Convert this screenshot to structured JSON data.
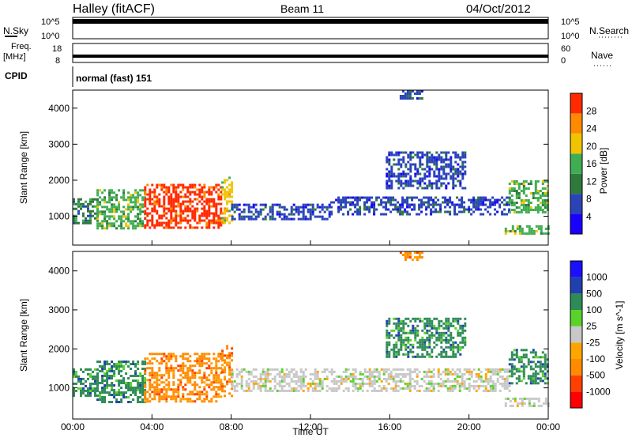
{
  "header": {
    "station": "Halley (fitACF)",
    "beam": "Beam 11",
    "date": "04/Oct/2012"
  },
  "top_panels": {
    "nsky_label": "N.Sky",
    "nsky_ticks": [
      "10^5",
      "10^0"
    ],
    "nsearch_label": "N.Search",
    "nsearch_ticks": [
      "10^5",
      "10^0"
    ],
    "freq_label": "Freq.",
    "freq_unit": "[MHz]",
    "freq_ticks": [
      "18",
      "8"
    ],
    "nave_label": "Nave",
    "nave_ticks": [
      "60",
      "0"
    ],
    "cpid_label": "CPID",
    "cpid_value": "normal (fast) 151"
  },
  "chart_data": [
    {
      "type": "heatmap",
      "name": "power",
      "ylabel": "Slant Range [km]",
      "ylim": [
        200,
        4500
      ],
      "yticks": [
        "1000",
        "2000",
        "3000",
        "4000"
      ],
      "colorbar_label": "Power [dB]",
      "colorbar_ticks": [
        "4",
        "8",
        "12",
        "16",
        "20",
        "24",
        "28"
      ],
      "colors": [
        "#1a00ff",
        "#2a44b8",
        "#2e7a3c",
        "#3fae52",
        "#f0c400",
        "#ff8a00",
        "#ff2a00"
      ],
      "regions": [
        {
          "t0": 0.0,
          "t1": 1.2,
          "r0": 800,
          "r1": 1500,
          "level": 2
        },
        {
          "t0": 1.2,
          "t1": 3.6,
          "r0": 650,
          "r1": 1750,
          "level": 3
        },
        {
          "t0": 3.6,
          "t1": 7.5,
          "r0": 700,
          "r1": 1900,
          "level": 6
        },
        {
          "t0": 7.5,
          "t1": 8.0,
          "r0": 800,
          "r1": 2100,
          "level": 4
        },
        {
          "t0": 8.0,
          "t1": 13.0,
          "r0": 950,
          "r1": 1350,
          "level": 1
        },
        {
          "t0": 13.0,
          "t1": 22.0,
          "r0": 1050,
          "r1": 1550,
          "level": 1
        },
        {
          "t0": 15.8,
          "t1": 19.8,
          "r0": 1800,
          "r1": 2800,
          "level": 1
        },
        {
          "t0": 16.5,
          "t1": 17.6,
          "r0": 4300,
          "r1": 4500,
          "level": 1
        },
        {
          "t0": 22.0,
          "t1": 24.0,
          "r0": 1100,
          "r1": 2000,
          "level": 3
        },
        {
          "t0": 21.8,
          "t1": 24.0,
          "r0": 520,
          "r1": 750,
          "level": 3
        }
      ]
    },
    {
      "type": "heatmap",
      "name": "velocity",
      "xlabel": "Time UT",
      "ylabel": "Slant Range [km]",
      "ylim": [
        200,
        4500
      ],
      "xlim": [
        0,
        24
      ],
      "xticks": [
        "00:00",
        "04:00",
        "08:00",
        "12:00",
        "16:00",
        "20:00",
        "00:00"
      ],
      "yticks": [
        "1000",
        "2000",
        "3000",
        "4000"
      ],
      "colorbar_label": "Velocity [m s^-1]",
      "colorbar_ticks": [
        "-1000",
        "-500",
        "-100",
        "-25",
        "25",
        "100",
        "500",
        "1000"
      ],
      "colors": [
        "#ff0000",
        "#ff4000",
        "#ff8c00",
        "#ffa500",
        "#c8c8c8",
        "#5ad22a",
        "#2e8b57",
        "#2040b0",
        "#1a10ff"
      ],
      "regions": [
        {
          "t0": 0.0,
          "t1": 1.2,
          "r0": 800,
          "r1": 1500,
          "level": 6
        },
        {
          "t0": 1.2,
          "t1": 3.6,
          "r0": 650,
          "r1": 1700,
          "level": 6
        },
        {
          "t0": 3.6,
          "t1": 7.5,
          "r0": 650,
          "r1": 1900,
          "level": 2
        },
        {
          "t0": 7.5,
          "t1": 8.0,
          "r0": 800,
          "r1": 2100,
          "level": 2
        },
        {
          "t0": 8.0,
          "t1": 22.0,
          "r0": 950,
          "r1": 1500,
          "level": 4
        },
        {
          "t0": 15.8,
          "t1": 19.8,
          "r0": 1800,
          "r1": 2800,
          "level": 6
        },
        {
          "t0": 16.5,
          "t1": 17.6,
          "r0": 4300,
          "r1": 4500,
          "level": 2
        },
        {
          "t0": 22.0,
          "t1": 24.0,
          "r0": 1100,
          "r1": 2000,
          "level": 6
        },
        {
          "t0": 21.8,
          "t1": 24.0,
          "r0": 520,
          "r1": 750,
          "level": 4
        }
      ]
    }
  ]
}
